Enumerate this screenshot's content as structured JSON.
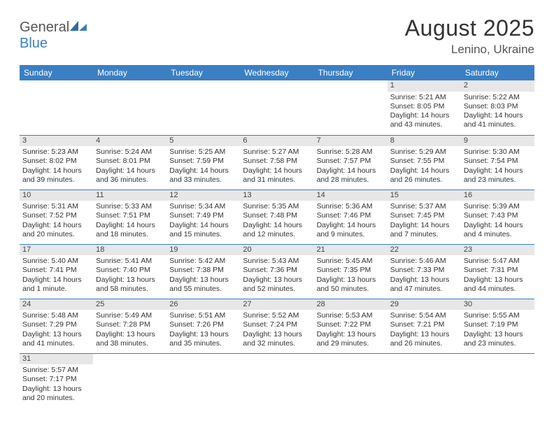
{
  "logo": {
    "text_general": "General",
    "text_blue": "Blue"
  },
  "title": "August 2025",
  "location": "Lenino, Ukraine",
  "colors": {
    "header_bg": "#3a7fc4",
    "header_text": "#ffffff",
    "daynum_bg": "#e7e7e7",
    "row_border": "#3a7fc4",
    "text": "#333333"
  },
  "weekdays": [
    "Sunday",
    "Monday",
    "Tuesday",
    "Wednesday",
    "Thursday",
    "Friday",
    "Saturday"
  ],
  "weeks": [
    [
      null,
      null,
      null,
      null,
      null,
      {
        "n": "1",
        "sr": "Sunrise: 5:21 AM",
        "ss": "Sunset: 8:05 PM",
        "dl": "Daylight: 14 hours and 43 minutes."
      },
      {
        "n": "2",
        "sr": "Sunrise: 5:22 AM",
        "ss": "Sunset: 8:03 PM",
        "dl": "Daylight: 14 hours and 41 minutes."
      }
    ],
    [
      {
        "n": "3",
        "sr": "Sunrise: 5:23 AM",
        "ss": "Sunset: 8:02 PM",
        "dl": "Daylight: 14 hours and 39 minutes."
      },
      {
        "n": "4",
        "sr": "Sunrise: 5:24 AM",
        "ss": "Sunset: 8:01 PM",
        "dl": "Daylight: 14 hours and 36 minutes."
      },
      {
        "n": "5",
        "sr": "Sunrise: 5:25 AM",
        "ss": "Sunset: 7:59 PM",
        "dl": "Daylight: 14 hours and 33 minutes."
      },
      {
        "n": "6",
        "sr": "Sunrise: 5:27 AM",
        "ss": "Sunset: 7:58 PM",
        "dl": "Daylight: 14 hours and 31 minutes."
      },
      {
        "n": "7",
        "sr": "Sunrise: 5:28 AM",
        "ss": "Sunset: 7:57 PM",
        "dl": "Daylight: 14 hours and 28 minutes."
      },
      {
        "n": "8",
        "sr": "Sunrise: 5:29 AM",
        "ss": "Sunset: 7:55 PM",
        "dl": "Daylight: 14 hours and 26 minutes."
      },
      {
        "n": "9",
        "sr": "Sunrise: 5:30 AM",
        "ss": "Sunset: 7:54 PM",
        "dl": "Daylight: 14 hours and 23 minutes."
      }
    ],
    [
      {
        "n": "10",
        "sr": "Sunrise: 5:31 AM",
        "ss": "Sunset: 7:52 PM",
        "dl": "Daylight: 14 hours and 20 minutes."
      },
      {
        "n": "11",
        "sr": "Sunrise: 5:33 AM",
        "ss": "Sunset: 7:51 PM",
        "dl": "Daylight: 14 hours and 18 minutes."
      },
      {
        "n": "12",
        "sr": "Sunrise: 5:34 AM",
        "ss": "Sunset: 7:49 PM",
        "dl": "Daylight: 14 hours and 15 minutes."
      },
      {
        "n": "13",
        "sr": "Sunrise: 5:35 AM",
        "ss": "Sunset: 7:48 PM",
        "dl": "Daylight: 14 hours and 12 minutes."
      },
      {
        "n": "14",
        "sr": "Sunrise: 5:36 AM",
        "ss": "Sunset: 7:46 PM",
        "dl": "Daylight: 14 hours and 9 minutes."
      },
      {
        "n": "15",
        "sr": "Sunrise: 5:37 AM",
        "ss": "Sunset: 7:45 PM",
        "dl": "Daylight: 14 hours and 7 minutes."
      },
      {
        "n": "16",
        "sr": "Sunrise: 5:39 AM",
        "ss": "Sunset: 7:43 PM",
        "dl": "Daylight: 14 hours and 4 minutes."
      }
    ],
    [
      {
        "n": "17",
        "sr": "Sunrise: 5:40 AM",
        "ss": "Sunset: 7:41 PM",
        "dl": "Daylight: 14 hours and 1 minute."
      },
      {
        "n": "18",
        "sr": "Sunrise: 5:41 AM",
        "ss": "Sunset: 7:40 PM",
        "dl": "Daylight: 13 hours and 58 minutes."
      },
      {
        "n": "19",
        "sr": "Sunrise: 5:42 AM",
        "ss": "Sunset: 7:38 PM",
        "dl": "Daylight: 13 hours and 55 minutes."
      },
      {
        "n": "20",
        "sr": "Sunrise: 5:43 AM",
        "ss": "Sunset: 7:36 PM",
        "dl": "Daylight: 13 hours and 52 minutes."
      },
      {
        "n": "21",
        "sr": "Sunrise: 5:45 AM",
        "ss": "Sunset: 7:35 PM",
        "dl": "Daylight: 13 hours and 50 minutes."
      },
      {
        "n": "22",
        "sr": "Sunrise: 5:46 AM",
        "ss": "Sunset: 7:33 PM",
        "dl": "Daylight: 13 hours and 47 minutes."
      },
      {
        "n": "23",
        "sr": "Sunrise: 5:47 AM",
        "ss": "Sunset: 7:31 PM",
        "dl": "Daylight: 13 hours and 44 minutes."
      }
    ],
    [
      {
        "n": "24",
        "sr": "Sunrise: 5:48 AM",
        "ss": "Sunset: 7:29 PM",
        "dl": "Daylight: 13 hours and 41 minutes."
      },
      {
        "n": "25",
        "sr": "Sunrise: 5:49 AM",
        "ss": "Sunset: 7:28 PM",
        "dl": "Daylight: 13 hours and 38 minutes."
      },
      {
        "n": "26",
        "sr": "Sunrise: 5:51 AM",
        "ss": "Sunset: 7:26 PM",
        "dl": "Daylight: 13 hours and 35 minutes."
      },
      {
        "n": "27",
        "sr": "Sunrise: 5:52 AM",
        "ss": "Sunset: 7:24 PM",
        "dl": "Daylight: 13 hours and 32 minutes."
      },
      {
        "n": "28",
        "sr": "Sunrise: 5:53 AM",
        "ss": "Sunset: 7:22 PM",
        "dl": "Daylight: 13 hours and 29 minutes."
      },
      {
        "n": "29",
        "sr": "Sunrise: 5:54 AM",
        "ss": "Sunset: 7:21 PM",
        "dl": "Daylight: 13 hours and 26 minutes."
      },
      {
        "n": "30",
        "sr": "Sunrise: 5:55 AM",
        "ss": "Sunset: 7:19 PM",
        "dl": "Daylight: 13 hours and 23 minutes."
      }
    ],
    [
      {
        "n": "31",
        "sr": "Sunrise: 5:57 AM",
        "ss": "Sunset: 7:17 PM",
        "dl": "Daylight: 13 hours and 20 minutes."
      },
      null,
      null,
      null,
      null,
      null,
      null
    ]
  ]
}
